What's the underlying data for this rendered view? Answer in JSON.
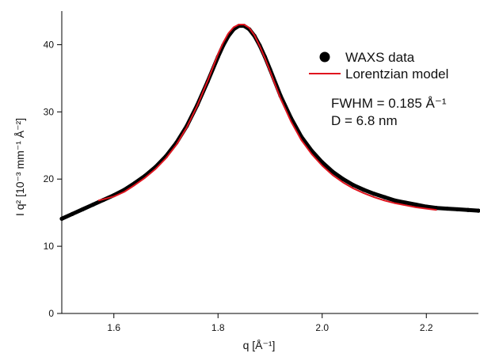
{
  "chart_data": {
    "type": "line",
    "title": "",
    "xlabel": "q [Å⁻¹]",
    "ylabel": "I q² [10⁻³ mm⁻¹ Å⁻²]",
    "xlim": [
      1.5,
      2.3
    ],
    "ylim": [
      0,
      45
    ],
    "xticks": [
      1.6,
      1.8,
      2.0,
      2.2
    ],
    "yticks": [
      0,
      10,
      20,
      30,
      40
    ],
    "grid": false,
    "legend_position": "top-right",
    "series": [
      {
        "name": "WAXS data",
        "style": "markers",
        "color": "#000000",
        "x": [
          1.5,
          1.52,
          1.54,
          1.56,
          1.58,
          1.6,
          1.62,
          1.64,
          1.66,
          1.68,
          1.7,
          1.72,
          1.74,
          1.76,
          1.78,
          1.8,
          1.81,
          1.82,
          1.83,
          1.84,
          1.85,
          1.86,
          1.87,
          1.88,
          1.89,
          1.9,
          1.92,
          1.94,
          1.96,
          1.98,
          2.0,
          2.02,
          2.04,
          2.06,
          2.08,
          2.1,
          2.12,
          2.14,
          2.16,
          2.18,
          2.2,
          2.22,
          2.24,
          2.26,
          2.28,
          2.3
        ],
        "y": [
          14.1,
          14.8,
          15.5,
          16.2,
          16.9,
          17.6,
          18.4,
          19.4,
          20.5,
          21.8,
          23.4,
          25.4,
          27.9,
          31.0,
          34.5,
          38.2,
          39.9,
          41.3,
          42.3,
          42.8,
          42.8,
          42.3,
          41.3,
          39.9,
          38.2,
          36.3,
          32.4,
          29.1,
          26.3,
          24.2,
          22.5,
          21.1,
          20.0,
          19.1,
          18.4,
          17.8,
          17.3,
          16.8,
          16.5,
          16.2,
          15.9,
          15.7,
          15.6,
          15.5,
          15.4,
          15.3
        ]
      },
      {
        "name": "Lorentzian model",
        "style": "line",
        "color": "#e0141e",
        "x": [
          1.57,
          1.6,
          1.62,
          1.64,
          1.66,
          1.68,
          1.7,
          1.72,
          1.74,
          1.76,
          1.78,
          1.8,
          1.81,
          1.82,
          1.83,
          1.84,
          1.85,
          1.86,
          1.87,
          1.88,
          1.89,
          1.9,
          1.92,
          1.94,
          1.96,
          1.98,
          2.0,
          2.02,
          2.04,
          2.06,
          2.08,
          2.1,
          2.12,
          2.14,
          2.16,
          2.18,
          2.2,
          2.22
        ],
        "y": [
          16.8,
          17.4,
          18.1,
          19.1,
          20.2,
          21.5,
          23.1,
          25.1,
          27.7,
          30.9,
          34.6,
          38.6,
          40.3,
          41.7,
          42.6,
          43.0,
          43.0,
          42.5,
          41.4,
          39.8,
          38.0,
          36.0,
          32.0,
          28.6,
          25.8,
          23.7,
          22.0,
          20.6,
          19.5,
          18.6,
          17.9,
          17.3,
          16.8,
          16.4,
          16.1,
          15.8,
          15.6,
          15.4
        ]
      }
    ],
    "annotations": [
      "FWHM = 0.185 Å⁻¹",
      "D = 6.8 nm"
    ]
  }
}
